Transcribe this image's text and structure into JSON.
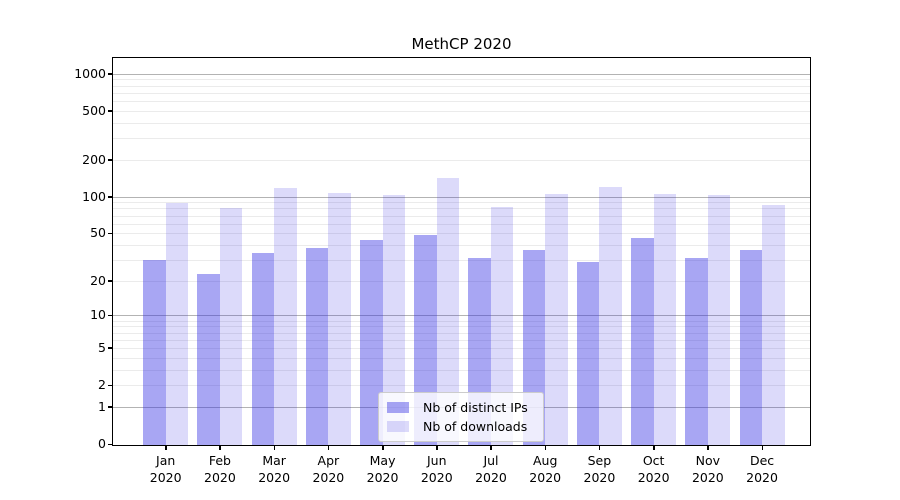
{
  "title": "MethCP 2020",
  "chart_data": {
    "type": "bar",
    "title": "MethCP 2020",
    "categories": [
      "Jan 2020",
      "Feb 2020",
      "Mar 2020",
      "Apr 2020",
      "May 2020",
      "Jun 2020",
      "Jul 2020",
      "Aug 2020",
      "Sep 2020",
      "Oct 2020",
      "Nov 2020",
      "Dec 2020"
    ],
    "series": [
      {
        "name": "Nb of distinct IPs",
        "color": "rgba(47,42,226,0.42)",
        "values": [
          30,
          23,
          34,
          38,
          44,
          48,
          31,
          36,
          29,
          46,
          31,
          36
        ]
      },
      {
        "name": "Nb of downloads",
        "color": "rgba(40,25,225,0.16)",
        "values": [
          88,
          81,
          117,
          107,
          104,
          143,
          83,
          105,
          119,
          106,
          104,
          85
        ]
      }
    ],
    "xlabel": "",
    "ylabel": "",
    "y_scale": "log1p",
    "y_ticks": [
      0,
      1,
      2,
      5,
      10,
      20,
      50,
      100,
      200,
      500,
      1000
    ],
    "ylim": [
      0,
      1330
    ],
    "grid": "horizontal major and minor",
    "legend_position": "lower center",
    "colors": {
      "major_grid": "#b3b3b3",
      "minor_grid": "#ebebeb",
      "spine": "#000000",
      "background": "#ffffff"
    }
  },
  "legend": {
    "items": [
      "Nb of distinct IPs",
      "Nb of downloads"
    ]
  }
}
